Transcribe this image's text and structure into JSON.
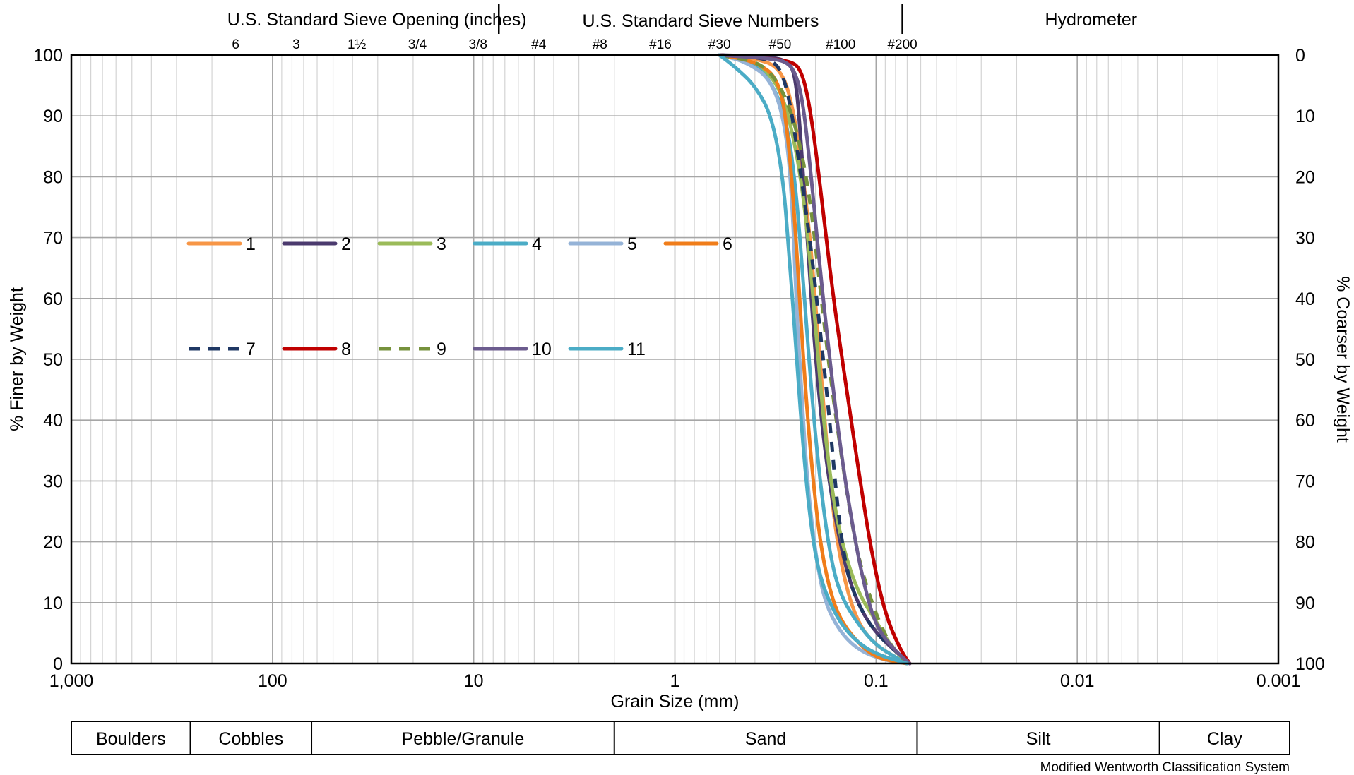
{
  "chart_data": {
    "type": "line",
    "title": "",
    "xlabel": "Grain Size (mm)",
    "ylabel": "% Finer by Weight",
    "y2label": "% Coarser by Weight",
    "x_scale": "log",
    "x_reversed": true,
    "xlim": [
      1000,
      0.001
    ],
    "ylim": [
      0,
      100
    ],
    "grid": true,
    "legend_position": "upper-left",
    "x_ticks": [
      1000,
      100,
      10,
      1,
      0.1,
      0.01,
      0.001
    ],
    "x_tick_labels": [
      "1,000",
      "100",
      "10",
      "1",
      "0.1",
      "0.01",
      "0.001"
    ],
    "y_ticks": [
      0,
      10,
      20,
      30,
      40,
      50,
      60,
      70,
      80,
      90,
      100
    ],
    "y_tick_labels": [
      "0",
      "10",
      "20",
      "30",
      "40",
      "50",
      "60",
      "70",
      "80",
      "90",
      "100"
    ],
    "y2_tick_labels": [
      "100",
      "90",
      "80",
      "70",
      "60",
      "50",
      "40",
      "30",
      "20",
      "10",
      "0"
    ],
    "top_axis": {
      "sieve_opening_title": "U.S. Standard Sieve Opening (inches)",
      "sieve_numbers_title": "U.S. Standard Sieve Numbers",
      "hydrometer_title": "Hydrometer",
      "divider_sizes": [
        7.5,
        0.074
      ],
      "sieves": [
        {
          "label": "6",
          "size": 152.4
        },
        {
          "label": "3",
          "size": 76.2
        },
        {
          "label": "1½",
          "size": 38.1
        },
        {
          "label": "3/4",
          "size": 19.05
        },
        {
          "label": "3/8",
          "size": 9.525
        },
        {
          "label": "#4",
          "size": 4.75
        },
        {
          "label": "#8",
          "size": 2.36
        },
        {
          "label": "#16",
          "size": 1.18
        },
        {
          "label": "#30",
          "size": 0.6
        },
        {
          "label": "#50",
          "size": 0.3
        },
        {
          "label": "#100",
          "size": 0.15
        },
        {
          "label": "#200",
          "size": 0.074
        }
      ]
    },
    "classification": {
      "caption": "Modified Wentworth Classification System",
      "boundaries": [
        1000,
        256,
        64,
        2,
        0.0625,
        0.0039,
        0.001
      ],
      "labels": [
        "Boulders",
        "Cobbles",
        "Pebble/Granule",
        "Sand",
        "Silt",
        "Clay"
      ]
    },
    "series": [
      {
        "name": "1",
        "color": "#F79646",
        "dash": false,
        "points": [
          [
            0.6,
            100
          ],
          [
            0.4,
            99.5
          ],
          [
            0.3,
            98
          ],
          [
            0.26,
            92
          ],
          [
            0.23,
            80
          ],
          [
            0.21,
            68
          ],
          [
            0.19,
            50
          ],
          [
            0.175,
            35
          ],
          [
            0.16,
            22
          ],
          [
            0.14,
            12
          ],
          [
            0.12,
            6
          ],
          [
            0.1,
            3
          ],
          [
            0.08,
            1
          ],
          [
            0.07,
            0
          ]
        ]
      },
      {
        "name": "2",
        "color": "#4B3A6E",
        "dash": false,
        "points": [
          [
            0.6,
            100
          ],
          [
            0.35,
            99.8
          ],
          [
            0.27,
            99
          ],
          [
            0.25,
            96
          ],
          [
            0.235,
            85
          ],
          [
            0.22,
            70
          ],
          [
            0.2,
            50
          ],
          [
            0.18,
            35
          ],
          [
            0.16,
            24
          ],
          [
            0.14,
            15
          ],
          [
            0.12,
            9
          ],
          [
            0.1,
            5
          ],
          [
            0.08,
            2
          ],
          [
            0.068,
            0
          ]
        ]
      },
      {
        "name": "3",
        "color": "#9BBB59",
        "dash": false,
        "points": [
          [
            0.6,
            100
          ],
          [
            0.4,
            99
          ],
          [
            0.3,
            95
          ],
          [
            0.25,
            85
          ],
          [
            0.22,
            72
          ],
          [
            0.2,
            55
          ],
          [
            0.18,
            38
          ],
          [
            0.16,
            25
          ],
          [
            0.14,
            17
          ],
          [
            0.12,
            11
          ],
          [
            0.1,
            7
          ],
          [
            0.085,
            3
          ],
          [
            0.07,
            0
          ]
        ]
      },
      {
        "name": "4",
        "color": "#4BACC6",
        "dash": false,
        "points": [
          [
            0.6,
            100
          ],
          [
            0.45,
            99
          ],
          [
            0.35,
            97
          ],
          [
            0.28,
            90
          ],
          [
            0.25,
            78
          ],
          [
            0.23,
            63
          ],
          [
            0.21,
            45
          ],
          [
            0.19,
            30
          ],
          [
            0.17,
            18
          ],
          [
            0.15,
            11
          ],
          [
            0.12,
            6
          ],
          [
            0.1,
            3
          ],
          [
            0.08,
            1
          ],
          [
            0.07,
            0
          ]
        ]
      },
      {
        "name": "5",
        "color": "#95B3D7",
        "dash": false,
        "points": [
          [
            0.6,
            100
          ],
          [
            0.45,
            99
          ],
          [
            0.33,
            96
          ],
          [
            0.28,
            88
          ],
          [
            0.26,
            75
          ],
          [
            0.25,
            60
          ],
          [
            0.235,
            45
          ],
          [
            0.22,
            30
          ],
          [
            0.2,
            18
          ],
          [
            0.18,
            10
          ],
          [
            0.15,
            5
          ],
          [
            0.12,
            2
          ],
          [
            0.09,
            0.5
          ],
          [
            0.07,
            0
          ]
        ]
      },
      {
        "name": "6",
        "color": "#F07D1A",
        "dash": false,
        "points": [
          [
            0.6,
            100
          ],
          [
            0.4,
            99
          ],
          [
            0.3,
            96
          ],
          [
            0.27,
            85
          ],
          [
            0.25,
            70
          ],
          [
            0.23,
            50
          ],
          [
            0.21,
            33
          ],
          [
            0.19,
            20
          ],
          [
            0.17,
            12
          ],
          [
            0.15,
            7
          ],
          [
            0.12,
            3
          ],
          [
            0.1,
            1
          ],
          [
            0.08,
            0.3
          ],
          [
            0.07,
            0
          ]
        ]
      },
      {
        "name": "7",
        "color": "#1F3864",
        "dash": true,
        "points": [
          [
            0.6,
            100
          ],
          [
            0.35,
            99.5
          ],
          [
            0.3,
            98
          ],
          [
            0.27,
            93
          ],
          [
            0.24,
            82
          ],
          [
            0.21,
            68
          ],
          [
            0.19,
            55
          ],
          [
            0.17,
            40
          ],
          [
            0.155,
            25
          ],
          [
            0.14,
            15
          ],
          [
            0.12,
            9
          ],
          [
            0.1,
            5
          ],
          [
            0.08,
            2
          ],
          [
            0.068,
            0
          ]
        ]
      },
      {
        "name": "8",
        "color": "#C00000",
        "dash": false,
        "points": [
          [
            0.6,
            100
          ],
          [
            0.35,
            99.5
          ],
          [
            0.27,
            99
          ],
          [
            0.24,
            98
          ],
          [
            0.22,
            94
          ],
          [
            0.2,
            85
          ],
          [
            0.18,
            72
          ],
          [
            0.16,
            58
          ],
          [
            0.14,
            45
          ],
          [
            0.12,
            30
          ],
          [
            0.105,
            18
          ],
          [
            0.09,
            8
          ],
          [
            0.075,
            2
          ],
          [
            0.068,
            0
          ]
        ]
      },
      {
        "name": "9",
        "color": "#76923C",
        "dash": true,
        "points": [
          [
            0.6,
            100
          ],
          [
            0.4,
            99
          ],
          [
            0.33,
            97
          ],
          [
            0.28,
            93
          ],
          [
            0.24,
            86
          ],
          [
            0.21,
            75
          ],
          [
            0.19,
            62
          ],
          [
            0.17,
            48
          ],
          [
            0.15,
            35
          ],
          [
            0.135,
            25
          ],
          [
            0.12,
            16
          ],
          [
            0.1,
            8
          ],
          [
            0.085,
            3
          ],
          [
            0.07,
            0
          ]
        ]
      },
      {
        "name": "10",
        "color": "#6B5B8E",
        "dash": false,
        "points": [
          [
            0.6,
            100
          ],
          [
            0.35,
            99.5
          ],
          [
            0.28,
            99
          ],
          [
            0.25,
            97
          ],
          [
            0.23,
            92
          ],
          [
            0.21,
            80
          ],
          [
            0.19,
            65
          ],
          [
            0.17,
            50
          ],
          [
            0.15,
            35
          ],
          [
            0.13,
            22
          ],
          [
            0.115,
            13
          ],
          [
            0.1,
            6
          ],
          [
            0.08,
            2
          ],
          [
            0.068,
            0
          ]
        ]
      },
      {
        "name": "11",
        "color": "#4BACC6",
        "dash": false,
        "points": [
          [
            0.6,
            100
          ],
          [
            0.5,
            98
          ],
          [
            0.4,
            95
          ],
          [
            0.33,
            90
          ],
          [
            0.29,
            80
          ],
          [
            0.27,
            67
          ],
          [
            0.25,
            52
          ],
          [
            0.23,
            35
          ],
          [
            0.21,
            22
          ],
          [
            0.19,
            14
          ],
          [
            0.16,
            8
          ],
          [
            0.13,
            4
          ],
          [
            0.1,
            1.5
          ],
          [
            0.07,
            0
          ]
        ]
      }
    ]
  }
}
